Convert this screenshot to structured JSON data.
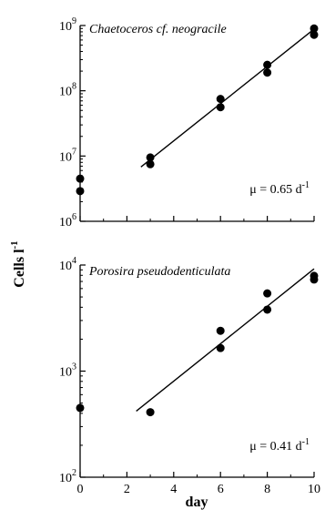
{
  "figure": {
    "ylabel": "Cells l",
    "ylabel_sup": "-1",
    "xlabel": "day"
  },
  "chart_data": [
    {
      "type": "scatter",
      "title": "Chaetoceros cf. neogracile",
      "xlabel": "day",
      "ylabel": "Cells l-1",
      "yscale": "log",
      "xlim": [
        0,
        10
      ],
      "ylim": [
        1000000,
        1000000000
      ],
      "x_ticks": [
        0,
        2,
        4,
        6,
        8,
        10
      ],
      "y_ticks": [
        {
          "value": 1000000,
          "base": "10",
          "exp": "6"
        },
        {
          "value": 10000000,
          "base": "10",
          "exp": "7"
        },
        {
          "value": 100000000,
          "base": "10",
          "exp": "8"
        },
        {
          "value": 1000000000,
          "base": "10",
          "exp": "9"
        }
      ],
      "points": [
        {
          "x": 0,
          "y": 4500000
        },
        {
          "x": 0,
          "y": 2900000
        },
        {
          "x": 3,
          "y": 9500000
        },
        {
          "x": 3,
          "y": 7500000
        },
        {
          "x": 6,
          "y": 75000000
        },
        {
          "x": 6,
          "y": 56000000
        },
        {
          "x": 8,
          "y": 250000000
        },
        {
          "x": 8,
          "y": 190000000
        },
        {
          "x": 10,
          "y": 900000000
        },
        {
          "x": 10,
          "y": 720000000
        }
      ],
      "fit_line": {
        "x": [
          2.6,
          10
        ],
        "y": [
          6800000,
          880000000
        ]
      },
      "annotation": {
        "text": "μ = 0.65 d",
        "sup": "-1"
      }
    },
    {
      "type": "scatter",
      "title": "Porosira pseudodenticulata",
      "xlabel": "day",
      "ylabel": "Cells l-1",
      "yscale": "log",
      "xlim": [
        0,
        10
      ],
      "ylim": [
        100,
        10000
      ],
      "x_ticks": [
        0,
        2,
        4,
        6,
        8,
        10
      ],
      "y_ticks": [
        {
          "value": 100,
          "base": "10",
          "exp": "2"
        },
        {
          "value": 1000,
          "base": "10",
          "exp": "3"
        },
        {
          "value": 10000,
          "base": "10",
          "exp": "4"
        }
      ],
      "points": [
        {
          "x": 0,
          "y": 450
        },
        {
          "x": 3,
          "y": 410
        },
        {
          "x": 6,
          "y": 2400
        },
        {
          "x": 6,
          "y": 1650
        },
        {
          "x": 8,
          "y": 5400
        },
        {
          "x": 8,
          "y": 3800
        },
        {
          "x": 10,
          "y": 7900
        },
        {
          "x": 10,
          "y": 7300
        }
      ],
      "fit_line": {
        "x": [
          2.4,
          10
        ],
        "y": [
          420,
          9200
        ]
      },
      "annotation": {
        "text": "μ = 0.41 d",
        "sup": "-1"
      }
    }
  ]
}
